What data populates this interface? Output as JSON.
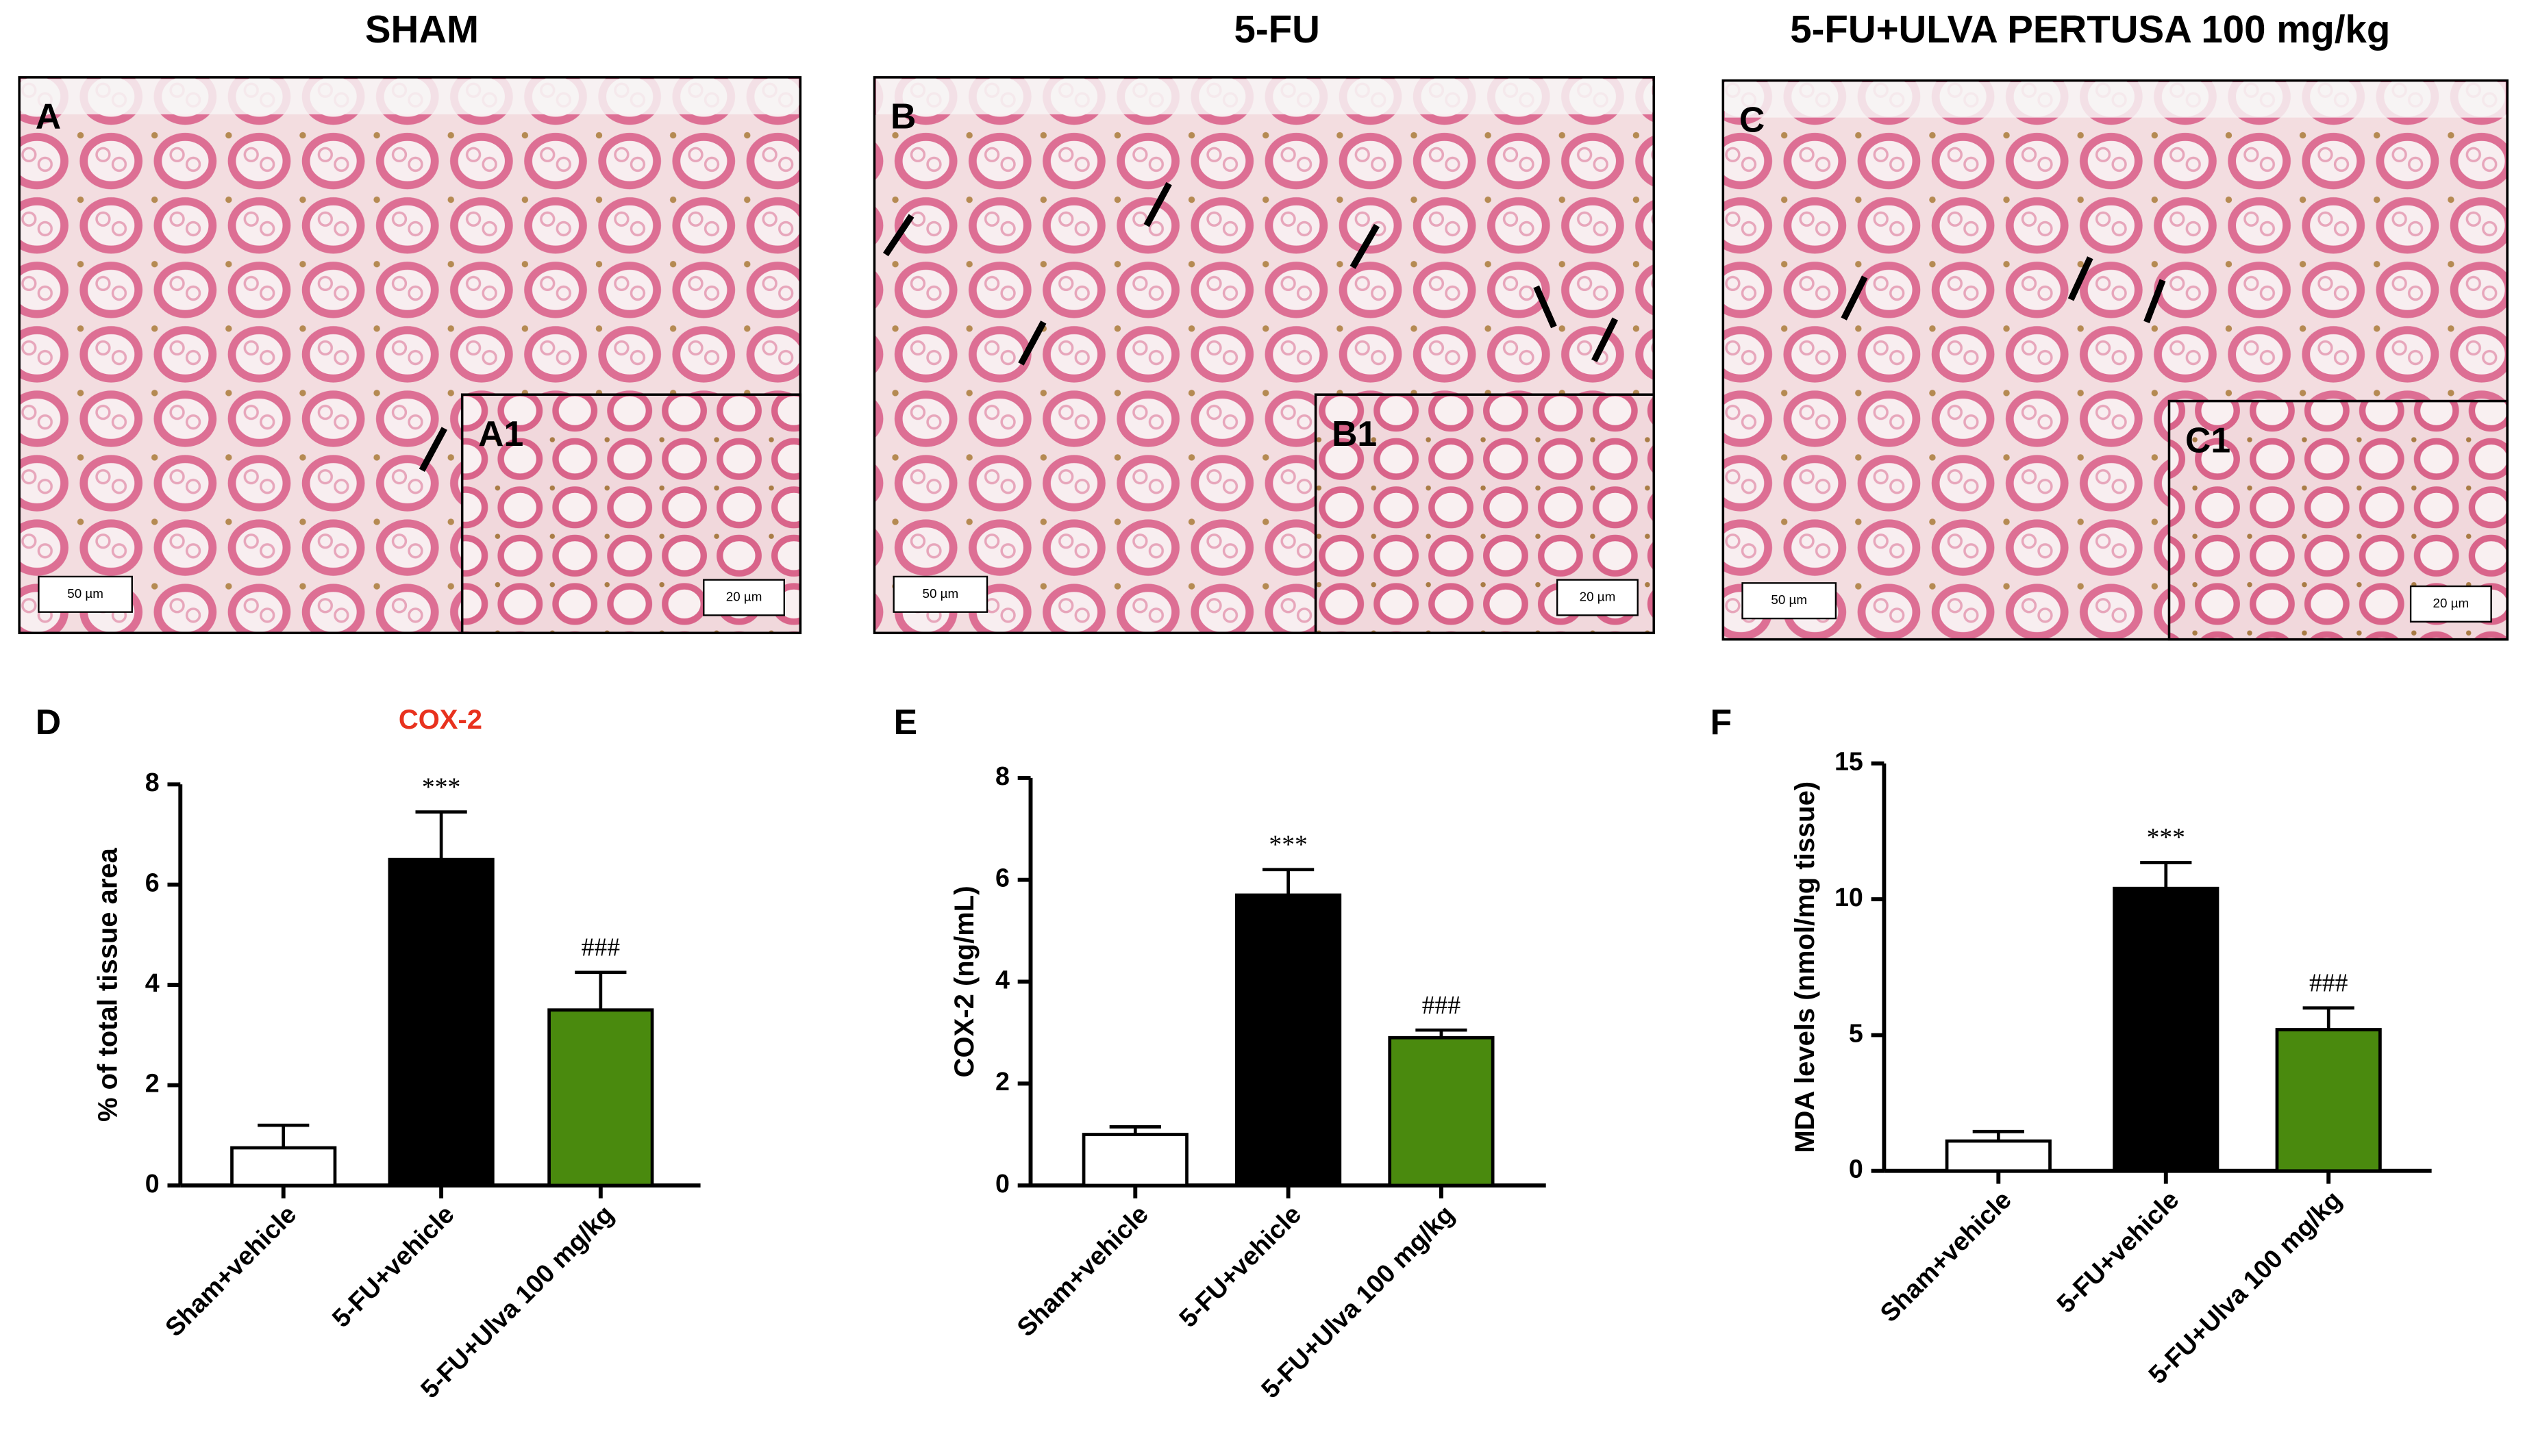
{
  "micrographs": [
    {
      "title": "SHAM",
      "label": "A",
      "inset_label": "A1",
      "scale": "50 µm",
      "inset_scale": "20 µm"
    },
    {
      "title": "5-FU",
      "label": "B",
      "inset_label": "B1",
      "scale": "50 µm",
      "inset_scale": "20 µm"
    },
    {
      "title": "5-FU+ULVA PERTUSA 100 mg/kg",
      "label": "C",
      "inset_label": "C1",
      "scale": "50 µm",
      "inset_scale": "20 µm"
    }
  ],
  "chart_data": [
    {
      "type": "bar",
      "panel": "D",
      "title": "COX-2",
      "title_color": "#e8321e",
      "y_label": "% of  total tissue area",
      "categories": [
        "Sham+vehicle",
        "5-FU+vehicle",
        "5-FU+Ulva 100 mg/kg"
      ],
      "values": [
        0.75,
        6.5,
        3.5
      ],
      "errors": [
        0.45,
        0.95,
        0.75
      ],
      "significance": [
        null,
        "***",
        "###"
      ],
      "colors": [
        "#ffffff",
        "#000000",
        "#4a8a0e"
      ],
      "ylim": [
        0,
        8
      ],
      "yticks": [
        0,
        2,
        4,
        6,
        8
      ]
    },
    {
      "type": "bar",
      "panel": "E",
      "y_label": "COX-2 (ng/mL)",
      "categories": [
        "Sham+vehicle",
        "5-FU+vehicle",
        "5-FU+Ulva 100 mg/kg"
      ],
      "values": [
        1.0,
        5.7,
        2.9
      ],
      "errors": [
        0.15,
        0.5,
        0.15
      ],
      "significance": [
        null,
        "***",
        "###"
      ],
      "colors": [
        "#ffffff",
        "#000000",
        "#4a8a0e"
      ],
      "ylim": [
        0,
        8
      ],
      "yticks": [
        0,
        2,
        4,
        6,
        8
      ]
    },
    {
      "type": "bar",
      "panel": "F",
      "y_label": "MDA levels (nmol/mg tissue)",
      "categories": [
        "Sham+vehicle",
        "5-FU+vehicle",
        "5-FU+Ulva 100 mg/kg"
      ],
      "values": [
        1.1,
        10.4,
        5.2
      ],
      "errors": [
        0.35,
        0.95,
        0.8
      ],
      "significance": [
        null,
        "***",
        "###"
      ],
      "colors": [
        "#ffffff",
        "#000000",
        "#4a8a0e"
      ],
      "ylim": [
        0,
        15
      ],
      "yticks": [
        0,
        5,
        10,
        15
      ]
    }
  ]
}
